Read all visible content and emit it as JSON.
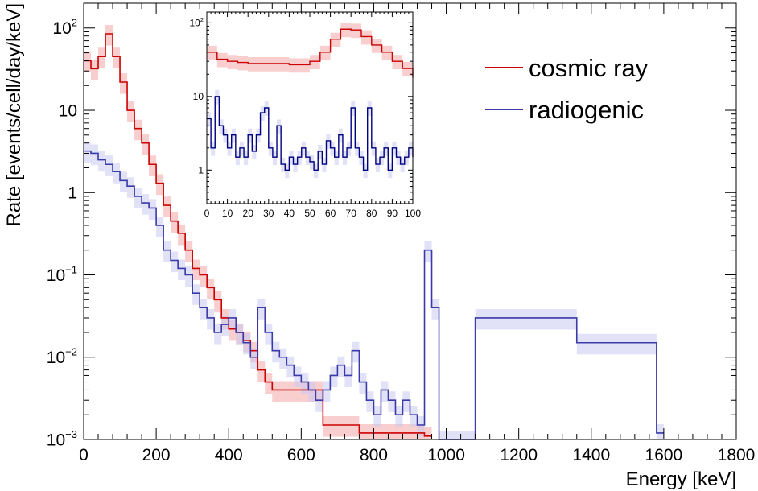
{
  "chart_data": [
    {
      "type": "line",
      "subtype": "histogram-step",
      "xlabel": "Energy [keV]",
      "ylabel": "Rate [events/cell/day/keV]",
      "xlim": [
        0,
        1800
      ],
      "ylim": [
        0.001,
        200
      ],
      "yscale": "log",
      "x_ticks": [
        0,
        200,
        400,
        600,
        800,
        1000,
        1200,
        1400,
        1600,
        1800
      ],
      "x_tick_labels": [
        "0",
        "200",
        "400",
        "600",
        "800",
        "1000",
        "1200",
        "1400",
        "1600",
        "1800"
      ],
      "y_ticks": [
        0.001,
        0.01,
        0.1,
        1,
        10,
        100
      ],
      "y_tick_labels": [
        {
          "base": "10",
          "exp": "−3"
        },
        {
          "base": "10",
          "exp": "−2"
        },
        {
          "base": "10",
          "exp": "−1"
        },
        {
          "base": "1",
          "exp": ""
        },
        {
          "base": "10",
          "exp": ""
        },
        {
          "base": "10",
          "exp": "2"
        }
      ],
      "legend": {
        "placement": "top-right"
      },
      "series": [
        {
          "name": "cosmic ray",
          "color": "#cc0000",
          "band_color": "#f4a6a6",
          "points": [
            [
              0,
              40
            ],
            [
              20,
              32
            ],
            [
              40,
              45
            ],
            [
              60,
              85
            ],
            [
              80,
              45
            ],
            [
              100,
              22
            ],
            [
              120,
              10
            ],
            [
              140,
              6
            ],
            [
              160,
              4
            ],
            [
              180,
              2.2
            ],
            [
              200,
              1.3
            ],
            [
              220,
              0.7
            ],
            [
              240,
              0.45
            ],
            [
              260,
              0.32
            ],
            [
              280,
              0.2
            ],
            [
              300,
              0.12
            ],
            [
              320,
              0.1
            ],
            [
              340,
              0.07
            ],
            [
              360,
              0.05
            ],
            [
              380,
              0.03
            ],
            [
              400,
              0.022
            ],
            [
              420,
              0.02
            ],
            [
              440,
              0.016
            ],
            [
              460,
              0.012
            ],
            [
              480,
              0.007
            ],
            [
              500,
              0.005
            ],
            [
              520,
              0.004
            ],
            [
              660,
              0.0015
            ],
            [
              760,
              0.0012
            ],
            [
              840,
              0.0012
            ],
            [
              940,
              0.0011
            ]
          ]
        },
        {
          "name": "radiogenic",
          "color": "#3a3aa8",
          "band_color": "#c9c9f2",
          "points": [
            [
              0,
              3.2
            ],
            [
              20,
              3
            ],
            [
              40,
              2.5
            ],
            [
              60,
              2.2
            ],
            [
              80,
              1.8
            ],
            [
              100,
              1.4
            ],
            [
              120,
              1.2
            ],
            [
              140,
              0.9
            ],
            [
              160,
              0.75
            ],
            [
              180,
              0.65
            ],
            [
              200,
              0.4
            ],
            [
              220,
              0.2
            ],
            [
              240,
              0.15
            ],
            [
              260,
              0.12
            ],
            [
              280,
              0.1
            ],
            [
              300,
              0.06
            ],
            [
              320,
              0.04
            ],
            [
              340,
              0.03
            ],
            [
              360,
              0.02
            ],
            [
              380,
              0.025
            ],
            [
              400,
              0.03
            ],
            [
              420,
              0.02
            ],
            [
              440,
              0.015
            ],
            [
              460,
              0.01
            ],
            [
              480,
              0.04
            ],
            [
              500,
              0.02
            ],
            [
              520,
              0.012
            ],
            [
              540,
              0.01
            ],
            [
              560,
              0.008
            ],
            [
              580,
              0.006
            ],
            [
              600,
              0.005
            ],
            [
              620,
              0.004
            ],
            [
              640,
              0.003
            ],
            [
              660,
              0.004
            ],
            [
              680,
              0.006
            ],
            [
              700,
              0.008
            ],
            [
              720,
              0.006
            ],
            [
              740,
              0.012
            ],
            [
              760,
              0.005
            ],
            [
              780,
              0.003
            ],
            [
              800,
              0.002
            ],
            [
              820,
              0.004
            ],
            [
              840,
              0.003
            ],
            [
              860,
              0.002
            ],
            [
              880,
              0.003
            ],
            [
              900,
              0.002
            ],
            [
              920,
              0.0015
            ],
            [
              940,
              0.2
            ],
            [
              960,
              0.04
            ],
            [
              980,
              0.001
            ],
            [
              1080,
              0.03
            ],
            [
              1360,
              0.015
            ],
            [
              1580,
              0.0012
            ]
          ]
        }
      ]
    },
    {
      "type": "line",
      "subtype": "histogram-step",
      "role": "inset",
      "xlim": [
        0,
        100
      ],
      "ylim": [
        0.35,
        140
      ],
      "yscale": "log",
      "x_ticks": [
        0,
        10,
        20,
        30,
        40,
        50,
        60,
        70,
        80,
        90,
        100
      ],
      "x_tick_labels": [
        "0",
        "10",
        "20",
        "30",
        "40",
        "50",
        "60",
        "70",
        "80",
        "90",
        "100"
      ],
      "y_ticks": [
        1,
        10,
        100
      ],
      "y_tick_labels": [
        {
          "base": "1",
          "exp": ""
        },
        {
          "base": "10",
          "exp": ""
        },
        {
          "base": "10",
          "exp": "2"
        }
      ],
      "series": [
        {
          "name": "cosmic ray",
          "color": "#cc0000",
          "band_color": "#f4a6a6",
          "points": [
            [
              0,
              40
            ],
            [
              5,
              32
            ],
            [
              10,
              30
            ],
            [
              15,
              29
            ],
            [
              20,
              28
            ],
            [
              25,
              28
            ],
            [
              30,
              28
            ],
            [
              35,
              28
            ],
            [
              40,
              27
            ],
            [
              45,
              27
            ],
            [
              50,
              30
            ],
            [
              55,
              40
            ],
            [
              60,
              60
            ],
            [
              65,
              82
            ],
            [
              70,
              80
            ],
            [
              75,
              65
            ],
            [
              80,
              50
            ],
            [
              85,
              40
            ],
            [
              90,
              30
            ],
            [
              95,
              24
            ],
            [
              100,
              18
            ]
          ]
        },
        {
          "name": "radiogenic",
          "color": "#000080",
          "band_color": "#c9c9f2",
          "points": [
            [
              0,
              5
            ],
            [
              2,
              2
            ],
            [
              4,
              10
            ],
            [
              6,
              4
            ],
            [
              8,
              3
            ],
            [
              10,
              2
            ],
            [
              12,
              3
            ],
            [
              14,
              1.5
            ],
            [
              16,
              2
            ],
            [
              18,
              1.5
            ],
            [
              20,
              3
            ],
            [
              22,
              1.8
            ],
            [
              24,
              3
            ],
            [
              26,
              6
            ],
            [
              28,
              7
            ],
            [
              30,
              2
            ],
            [
              32,
              1.5
            ],
            [
              34,
              4
            ],
            [
              36,
              1.2
            ],
            [
              38,
              1
            ],
            [
              40,
              1.5
            ],
            [
              42,
              1.2
            ],
            [
              44,
              1.5
            ],
            [
              46,
              2
            ],
            [
              48,
              1.5
            ],
            [
              50,
              1.3
            ],
            [
              52,
              1
            ],
            [
              54,
              1.8
            ],
            [
              56,
              1.2
            ],
            [
              58,
              2.5
            ],
            [
              60,
              2
            ],
            [
              62,
              1.5
            ],
            [
              64,
              3
            ],
            [
              66,
              1.5
            ],
            [
              68,
              2
            ],
            [
              70,
              7
            ],
            [
              72,
              2
            ],
            [
              74,
              1.5
            ],
            [
              76,
              1
            ],
            [
              78,
              7
            ],
            [
              80,
              2
            ],
            [
              82,
              1.2
            ],
            [
              84,
              1.5
            ],
            [
              86,
              2
            ],
            [
              88,
              1
            ],
            [
              90,
              2
            ],
            [
              92,
              1.5
            ],
            [
              94,
              1.2
            ],
            [
              96,
              1.5
            ],
            [
              98,
              2
            ],
            [
              100,
              1.5
            ]
          ]
        }
      ]
    }
  ]
}
